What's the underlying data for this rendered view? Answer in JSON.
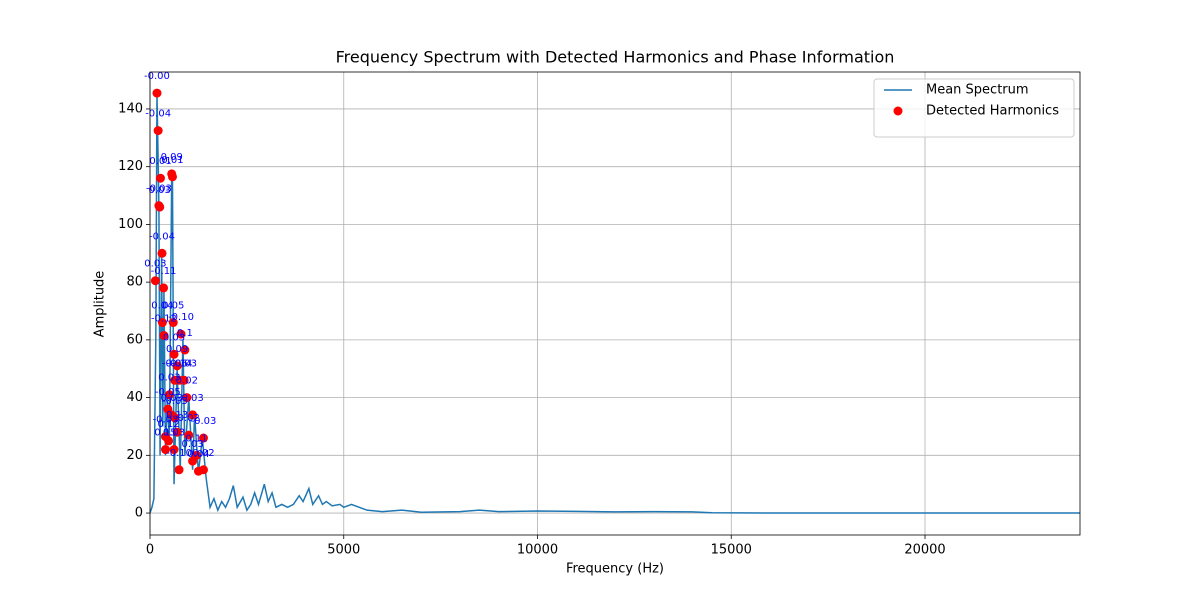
{
  "chart_data": {
    "type": "line",
    "title": "Frequency Spectrum with Detected Harmonics and Phase Information",
    "x_label": "Frequency (Hz)",
    "y_label": "Amplitude",
    "xlim": [
      0,
      24000
    ],
    "ylim": [
      -7.6,
      152.8
    ],
    "xticks": [
      0,
      5000,
      10000,
      15000,
      20000
    ],
    "yticks": [
      0,
      20,
      40,
      60,
      80,
      100,
      120,
      140
    ],
    "grid": true,
    "legend": "upper right",
    "series": [
      {
        "name": "Mean Spectrum",
        "type": "line",
        "color": "#1f77b4",
        "x": [
          0,
          50,
          100,
          150,
          180,
          200,
          230,
          260,
          300,
          330,
          360,
          400,
          450,
          500,
          560,
          580,
          620,
          700,
          780,
          850,
          900,
          1000,
          1100,
          1150,
          1250,
          1350,
          1450,
          1550,
          1650,
          1750,
          1850,
          1950,
          2050,
          2150,
          2250,
          2400,
          2500,
          2600,
          2700,
          2800,
          2950,
          3050,
          3150,
          3250,
          3400,
          3550,
          3700,
          3850,
          3950,
          4100,
          4200,
          4350,
          4450,
          4550,
          4700,
          4900,
          5000,
          5200,
          5400,
          5600,
          6000,
          6500,
          7000,
          8000,
          8500,
          9000,
          10000,
          11000,
          12000,
          13000,
          14000,
          14500,
          16000,
          20000,
          24000
        ],
        "values": [
          0,
          2,
          5,
          60,
          145,
          130,
          106,
          20,
          90,
          30,
          78,
          20,
          40,
          25,
          117,
          116,
          10,
          50,
          15,
          60,
          20,
          40,
          15,
          34,
          14,
          26,
          12,
          2,
          5,
          1,
          4,
          2,
          5,
          9.5,
          2,
          5.5,
          1,
          3,
          7,
          3,
          10,
          4,
          7,
          2,
          3,
          2,
          3,
          6,
          4,
          8.5,
          3,
          6,
          3,
          4,
          2.5,
          3,
          2,
          3,
          2,
          1,
          0.5,
          1,
          0.3,
          0.5,
          1,
          0.5,
          0.7,
          0.6,
          0.4,
          0.5,
          0.4,
          0.1,
          0,
          0,
          0
        ]
      },
      {
        "name": "Detected Harmonics",
        "type": "scatter",
        "color": "#ff0000",
        "x": [
          180,
          210,
          270,
          230,
          250,
          310,
          140,
          350,
          320,
          360,
          560,
          580,
          600,
          620,
          700,
          800,
          900,
          760,
          640,
          500,
          950,
          880,
          460,
          560,
          640,
          1100,
          700,
          400,
          480,
          1380,
          1000,
          400,
          620,
          750,
          1100,
          1200,
          1250,
          1380
        ],
        "values": [
          145.5,
          132.5,
          116,
          106.5,
          106,
          90,
          80.5,
          78,
          66,
          61.5,
          117.5,
          116.5,
          66,
          55,
          51,
          62,
          56.5,
          46,
          46,
          41,
          40,
          46,
          36,
          34,
          33,
          34,
          28,
          26.5,
          25,
          26,
          27,
          22,
          22,
          15,
          18,
          20,
          14.5,
          15
        ],
        "labels": [
          "-0.00",
          "-0.04",
          "0.01",
          "-0.03",
          "0.03",
          "-0.04",
          "0.03",
          "-0.11",
          "0.04",
          "-0.12",
          "0.09",
          "0.01",
          "0.05",
          "0.03",
          "0.09",
          "-0.10",
          "0.1",
          "-0.14",
          "-0.06",
          "0.03",
          "0.02",
          "-0.03",
          "-0.05",
          "0.03",
          "-0.03",
          "0.03",
          "0.13",
          "-0.03",
          "0.12",
          "-0.03",
          "0.02",
          "0.15",
          "0.03",
          "-0.10",
          "0.03",
          "0.11",
          "0.04",
          "0.02"
        ]
      }
    ]
  }
}
